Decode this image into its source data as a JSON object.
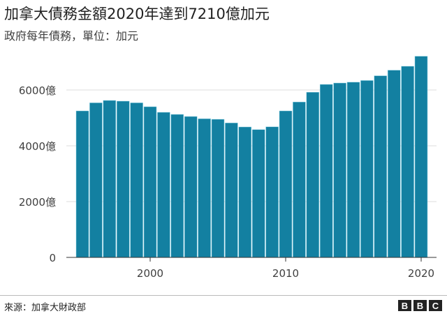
{
  "title": "加拿大債務金額2020年達到7210億加元",
  "subtitle": "政府每年債務，單位：加元",
  "source": "來源：加拿大財政部",
  "logo": "BBC",
  "chart_data": {
    "type": "bar",
    "title": "加拿大債務金額2020年達到7210億加元",
    "subtitle": "政府每年債務，單位：加元",
    "x": [
      1995,
      1996,
      1997,
      1998,
      1999,
      2000,
      2001,
      2002,
      2003,
      2004,
      2005,
      2006,
      2007,
      2008,
      2009,
      2010,
      2011,
      2012,
      2013,
      2014,
      2015,
      2016,
      2017,
      2018,
      2019,
      2020
    ],
    "values": [
      5250,
      5540,
      5625,
      5600,
      5540,
      5400,
      5200,
      5125,
      5050,
      4970,
      4950,
      4820,
      4675,
      4580,
      4680,
      5250,
      5570,
      5920,
      6200,
      6250,
      6280,
      6340,
      6510,
      6710,
      6850,
      7210
    ],
    "unit": "億加元",
    "ylim": [
      0,
      7300
    ],
    "yticks": [
      0,
      2000,
      4000,
      6000
    ],
    "ytick_labels": [
      "0",
      "2000億",
      "4000億",
      "6000億"
    ],
    "xticks": [
      2000,
      2010,
      2020
    ],
    "xtick_labels": [
      "2000",
      "2010",
      "2020"
    ],
    "grid": true,
    "color": "#1380A1"
  }
}
